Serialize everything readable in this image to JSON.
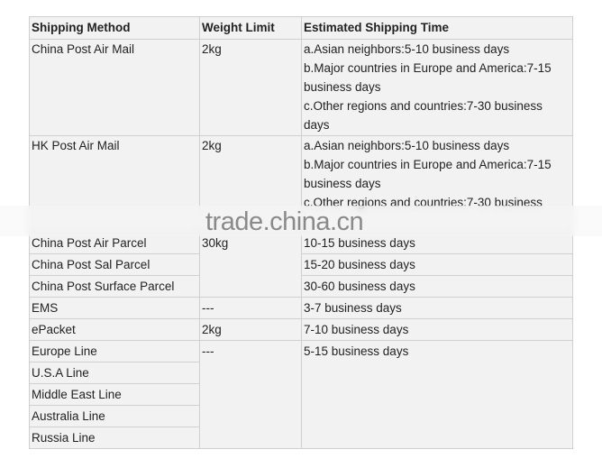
{
  "table": {
    "headers": [
      "Shipping Method",
      "Weight Limit",
      "Estimated Shipping Time"
    ],
    "rows": [
      {
        "method": "China Post Air Mail",
        "weight": "2kg",
        "time": [
          "a.Asian neighbors:5-10 business days",
          "b.Major countries in Europe and America:7-15",
          "business days",
          "c.Other regions and countries:7-30 business",
          "days"
        ]
      },
      {
        "method": "HK Post Air Mail",
        "weight": "2kg",
        "time": [
          "a.Asian neighbors:5-10 business days",
          "b.Major countries in Europe and America:7-15",
          "business days",
          "c.Other regions and countries:7-30 business"
        ]
      },
      {
        "method": "China Post Air Parcel",
        "weight": "30kg",
        "time": "10-15 business days"
      },
      {
        "method": "China Post Sal Parcel",
        "time": "15-20 business days"
      },
      {
        "method": "China Post Surface Parcel",
        "time": "30-60 business days"
      },
      {
        "method": "EMS",
        "weight": "---",
        "time": "3-7 business days"
      },
      {
        "method": "ePacket",
        "weight": "2kg",
        "time": "7-10 business days"
      },
      {
        "method": "Europe Line",
        "weight": "---",
        "time": "5-15 business days"
      },
      {
        "method": "U.S.A Line"
      },
      {
        "method": "Middle East Line"
      },
      {
        "method": "Australia Line"
      },
      {
        "method": "Russia Line"
      }
    ]
  },
  "watermark": "trade.china.cn"
}
